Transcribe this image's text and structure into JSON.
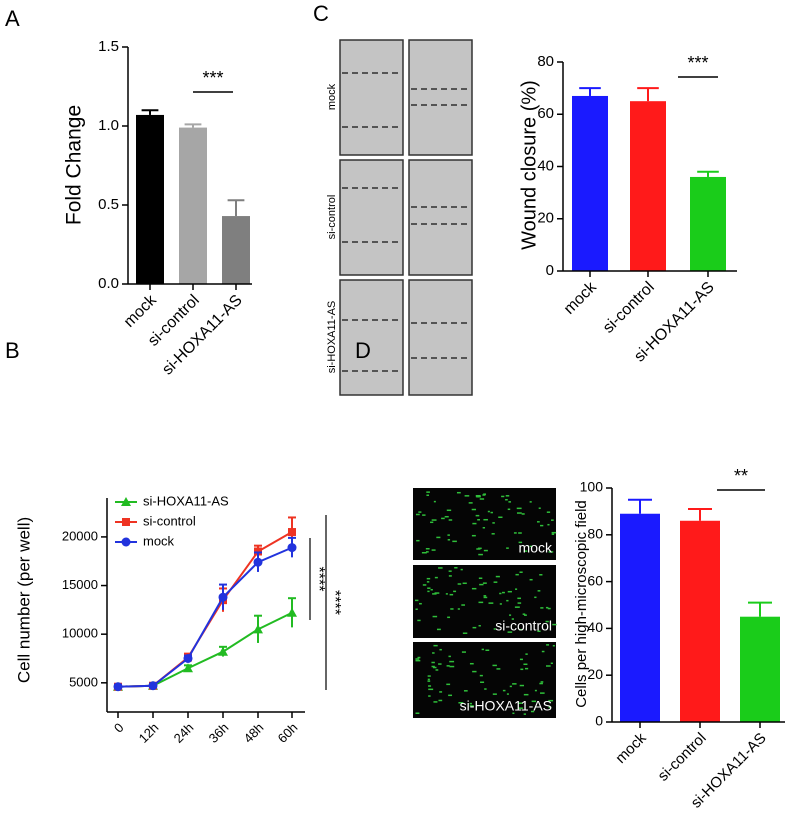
{
  "chart_data": [
    {
      "type": "bar",
      "panel": "A",
      "ylabel": "Fold Change",
      "categories": [
        "mock",
        "si-control",
        "si-HOXA11-AS"
      ],
      "values": [
        1.07,
        0.99,
        0.43
      ],
      "errors": [
        0.03,
        0.02,
        0.1
      ],
      "colors": [
        "#000000",
        "#a6a6a6",
        "#7f7f7f"
      ],
      "ylim": [
        0,
        1.5
      ],
      "yticks": [
        {
          "value": 0,
          "label": "0.0"
        },
        0.5,
        {
          "value": 1,
          "label": "1.0"
        },
        1.5
      ],
      "annotation": "***"
    },
    {
      "type": "line",
      "panel": "B",
      "ylabel": "Cell number (per well)",
      "categories": [
        "0",
        "12h",
        "24h",
        "36h",
        "48h",
        "60h"
      ],
      "series": [
        {
          "name": "si-HOXA11-AS",
          "color": "#22bb22",
          "marker": "triangle",
          "values": [
            4600,
            4700,
            6500,
            8200,
            10500,
            12200
          ],
          "errors": [
            200,
            200,
            300,
            500,
            1400,
            1500
          ]
        },
        {
          "name": "si-control",
          "color": "#ee3322",
          "marker": "square",
          "values": [
            4600,
            4700,
            7600,
            13500,
            18500,
            20500
          ],
          "errors": [
            200,
            200,
            400,
            1200,
            600,
            1500
          ]
        },
        {
          "name": "mock",
          "color": "#2233dd",
          "marker": "circle",
          "values": [
            4600,
            4700,
            7500,
            13800,
            17400,
            18900
          ],
          "errors": [
            200,
            200,
            300,
            1300,
            1000,
            1000
          ]
        }
      ],
      "ylim": [
        2000,
        24000
      ],
      "yticks": [
        5000,
        10000,
        15000,
        20000
      ],
      "annotations": [
        "****",
        "****"
      ]
    },
    {
      "type": "bar",
      "panel": "C",
      "ylabel": "Wound closure (%)",
      "image_labels": [
        "mock",
        "si-control",
        "si-HOXA11-AS"
      ],
      "categories": [
        "mock",
        "si-control",
        "si-HOXA11-AS"
      ],
      "values": [
        67,
        65,
        36
      ],
      "errors": [
        3,
        5,
        2
      ],
      "colors": [
        "#1a1aff",
        "#ff1a1a",
        "#1acc1a"
      ],
      "ylim": [
        0,
        80
      ],
      "yticks": [
        0,
        20,
        40,
        60,
        80
      ],
      "annotation": "***"
    },
    {
      "type": "bar",
      "panel": "D",
      "ylabel": "Cells per high-microscopic field",
      "image_labels": [
        "mock",
        "si-control",
        "si-HOXA11-AS"
      ],
      "categories": [
        "mock",
        "si-control",
        "si-HOXA11-AS"
      ],
      "values": [
        89,
        86,
        45
      ],
      "errors": [
        6,
        5,
        6
      ],
      "colors": [
        "#1a1aff",
        "#ff1a1a",
        "#1acc1a"
      ],
      "ylim": [
        0,
        100
      ],
      "yticks": [
        0,
        20,
        40,
        60,
        80,
        100
      ],
      "annotation": "**"
    }
  ]
}
